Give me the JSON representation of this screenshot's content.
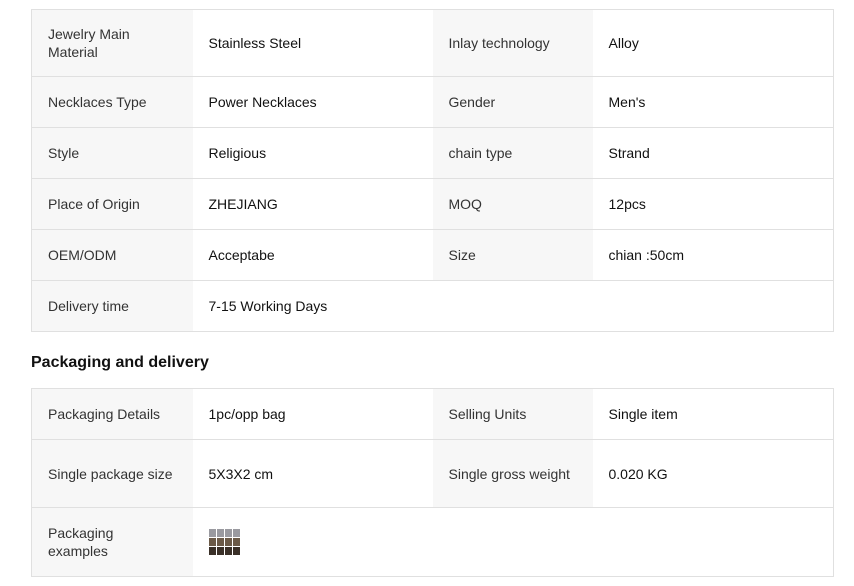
{
  "attributes": [
    [
      "Jewelry Main Material",
      "Stainless Steel",
      "Inlay technology",
      "Alloy"
    ],
    [
      "Necklaces Type",
      "Power Necklaces",
      "Gender",
      "Men's"
    ],
    [
      "Style",
      "Religious",
      "chain type",
      "Strand"
    ],
    [
      "Place of Origin",
      "ZHEJIANG",
      "MOQ",
      "12pcs"
    ],
    [
      "OEM/ODM",
      "Acceptabe",
      "Size",
      "chian :50cm"
    ]
  ],
  "delivery": {
    "label": "Delivery time",
    "value": "7-15 Working Days"
  },
  "packaging": {
    "heading": "Packaging and delivery",
    "rows": [
      [
        "Packaging Details",
        "1pc/opp bag",
        "Selling Units",
        "Single item"
      ],
      [
        "Single package size",
        "5X3X2 cm",
        "Single gross weight",
        "0.020 KG"
      ]
    ],
    "examples_label": "Packaging examples"
  }
}
